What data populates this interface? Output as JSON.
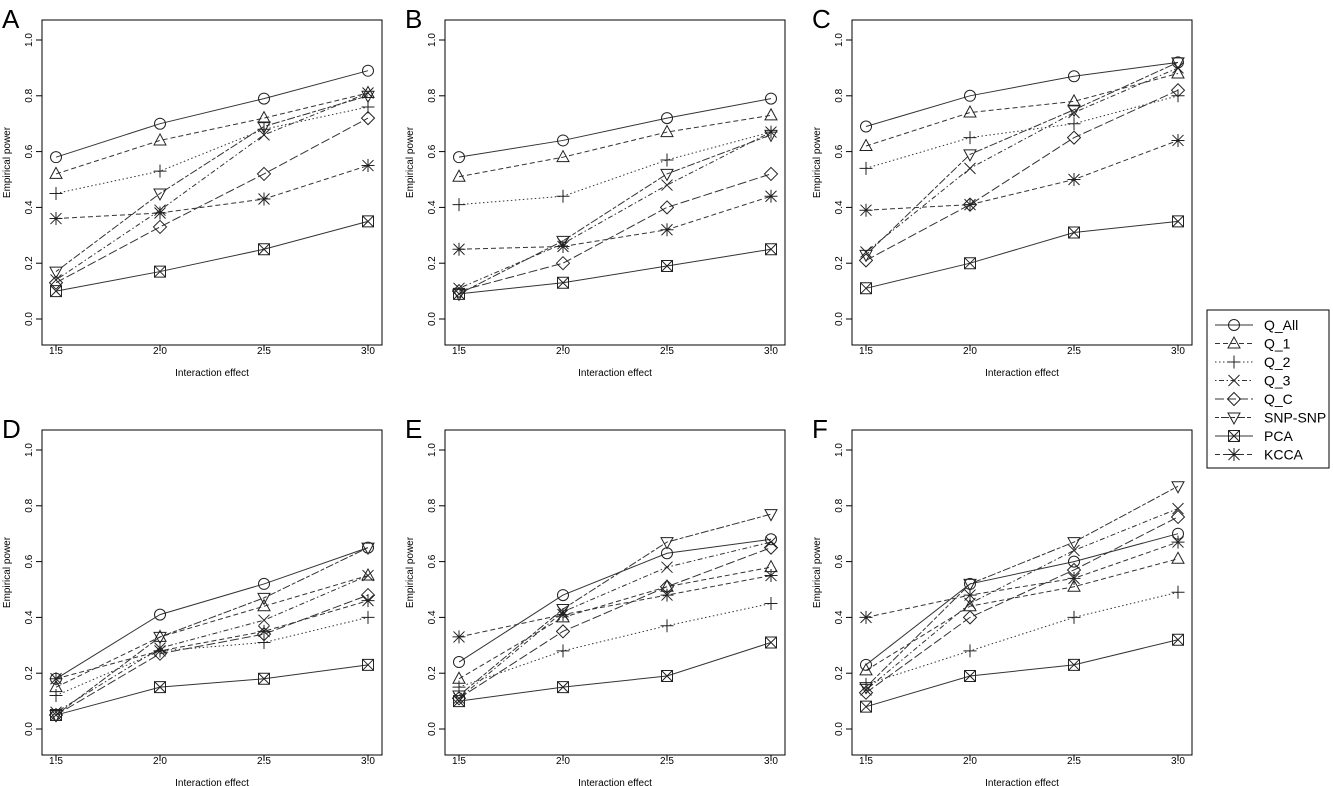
{
  "legend": {
    "placement": "right-middle",
    "entries": [
      {
        "name": "Q_All",
        "marker": "circle",
        "line": "solid"
      },
      {
        "name": "Q_1",
        "marker": "triangle-up",
        "line": "dashed"
      },
      {
        "name": "Q_2",
        "marker": "plus",
        "line": "dotted"
      },
      {
        "name": "Q_3",
        "marker": "x",
        "line": "dotdash"
      },
      {
        "name": "Q_C",
        "marker": "diamond",
        "line": "longdash"
      },
      {
        "name": "SNP-SNP",
        "marker": "triangle-down",
        "line": "twodash"
      },
      {
        "name": "PCA",
        "marker": "boxed-x",
        "line": "solid"
      },
      {
        "name": "KCCA",
        "marker": "asterisk",
        "line": "dashed"
      }
    ]
  },
  "chart_data": [
    {
      "panel": "A",
      "type": "line",
      "xlabel": "Interaction effect",
      "ylabel": "Empirical power",
      "x": [
        1.5,
        2.0,
        2.5,
        3.0
      ],
      "xticks": [
        "1.5",
        "2.0",
        "2.5",
        "3.0"
      ],
      "yticks": [
        "0.0",
        "0.2",
        "0.4",
        "0.6",
        "0.8",
        "1.0"
      ],
      "ylim": [
        0,
        1
      ],
      "series": [
        {
          "name": "Q_All",
          "values": [
            0.58,
            0.7,
            0.79,
            0.89
          ]
        },
        {
          "name": "Q_1",
          "values": [
            0.52,
            0.64,
            0.72,
            0.81
          ]
        },
        {
          "name": "Q_2",
          "values": [
            0.45,
            0.53,
            0.68,
            0.76
          ]
        },
        {
          "name": "Q_3",
          "values": [
            0.14,
            0.39,
            0.66,
            0.81
          ]
        },
        {
          "name": "Q_C",
          "values": [
            0.13,
            0.33,
            0.52,
            0.72
          ]
        },
        {
          "name": "SNP-SNP",
          "values": [
            0.17,
            0.45,
            0.69,
            0.8
          ]
        },
        {
          "name": "PCA",
          "values": [
            0.1,
            0.17,
            0.25,
            0.35
          ]
        },
        {
          "name": "KCCA",
          "values": [
            0.36,
            0.38,
            0.43,
            0.55
          ]
        }
      ]
    },
    {
      "panel": "B",
      "type": "line",
      "xlabel": "Interaction effect",
      "ylabel": "Empirical power",
      "x": [
        1.5,
        2.0,
        2.5,
        3.0
      ],
      "xticks": [
        "1.5",
        "2.0",
        "2.5",
        "3.0"
      ],
      "yticks": [
        "0.0",
        "0.2",
        "0.4",
        "0.6",
        "0.8",
        "1.0"
      ],
      "ylim": [
        0,
        1
      ],
      "series": [
        {
          "name": "Q_All",
          "values": [
            0.58,
            0.64,
            0.72,
            0.79
          ]
        },
        {
          "name": "Q_1",
          "values": [
            0.51,
            0.58,
            0.67,
            0.73
          ]
        },
        {
          "name": "Q_2",
          "values": [
            0.41,
            0.44,
            0.57,
            0.67
          ]
        },
        {
          "name": "Q_3",
          "values": [
            0.11,
            0.27,
            0.48,
            0.67
          ]
        },
        {
          "name": "Q_C",
          "values": [
            0.1,
            0.2,
            0.4,
            0.52
          ]
        },
        {
          "name": "SNP-SNP",
          "values": [
            0.09,
            0.28,
            0.52,
            0.66
          ]
        },
        {
          "name": "PCA",
          "values": [
            0.09,
            0.13,
            0.19,
            0.25
          ]
        },
        {
          "name": "KCCA",
          "values": [
            0.25,
            0.26,
            0.32,
            0.44
          ]
        }
      ]
    },
    {
      "panel": "C",
      "type": "line",
      "xlabel": "Interaction effect",
      "ylabel": "Empirical power",
      "x": [
        1.5,
        2.0,
        2.5,
        3.0
      ],
      "xticks": [
        "1.5",
        "2.0",
        "2.5",
        "3.0"
      ],
      "yticks": [
        "0.0",
        "0.2",
        "0.4",
        "0.6",
        "0.8",
        "1.0"
      ],
      "ylim": [
        0,
        1
      ],
      "series": [
        {
          "name": "Q_All",
          "values": [
            0.69,
            0.8,
            0.87,
            0.92
          ]
        },
        {
          "name": "Q_1",
          "values": [
            0.62,
            0.74,
            0.78,
            0.88
          ]
        },
        {
          "name": "Q_2",
          "values": [
            0.54,
            0.65,
            0.7,
            0.8
          ]
        },
        {
          "name": "Q_3",
          "values": [
            0.24,
            0.54,
            0.74,
            0.9
          ]
        },
        {
          "name": "Q_C",
          "values": [
            0.21,
            0.41,
            0.65,
            0.82
          ]
        },
        {
          "name": "SNP-SNP",
          "values": [
            0.23,
            0.59,
            0.75,
            0.92
          ]
        },
        {
          "name": "PCA",
          "values": [
            0.11,
            0.2,
            0.31,
            0.35
          ]
        },
        {
          "name": "KCCA",
          "values": [
            0.39,
            0.41,
            0.5,
            0.64
          ]
        }
      ]
    },
    {
      "panel": "D",
      "type": "line",
      "xlabel": "Interaction effect",
      "ylabel": "Empirical power",
      "x": [
        1.5,
        2.0,
        2.5,
        3.0
      ],
      "xticks": [
        "1.5",
        "2.0",
        "2.5",
        "3.0"
      ],
      "yticks": [
        "0.0",
        "0.2",
        "0.4",
        "0.6",
        "0.8",
        "1.0"
      ],
      "ylim": [
        0,
        1
      ],
      "series": [
        {
          "name": "Q_All",
          "values": [
            0.18,
            0.41,
            0.52,
            0.65
          ]
        },
        {
          "name": "Q_1",
          "values": [
            0.15,
            0.33,
            0.44,
            0.55
          ]
        },
        {
          "name": "Q_2",
          "values": [
            0.12,
            0.28,
            0.31,
            0.4
          ]
        },
        {
          "name": "Q_3",
          "values": [
            0.06,
            0.29,
            0.39,
            0.55
          ]
        },
        {
          "name": "Q_C",
          "values": [
            0.05,
            0.27,
            0.34,
            0.48
          ]
        },
        {
          "name": "SNP-SNP",
          "values": [
            0.05,
            0.33,
            0.47,
            0.65
          ]
        },
        {
          "name": "PCA",
          "values": [
            0.05,
            0.15,
            0.18,
            0.23
          ]
        },
        {
          "name": "KCCA",
          "values": [
            0.18,
            0.28,
            0.35,
            0.46
          ]
        }
      ]
    },
    {
      "panel": "E",
      "type": "line",
      "xlabel": "Interaction effect",
      "ylabel": "Empirical power",
      "x": [
        1.5,
        2.0,
        2.5,
        3.0
      ],
      "xticks": [
        "1.5",
        "2.0",
        "2.5",
        "3.0"
      ],
      "yticks": [
        "0.0",
        "0.2",
        "0.4",
        "0.6",
        "0.8",
        "1.0"
      ],
      "ylim": [
        0,
        1
      ],
      "series": [
        {
          "name": "Q_All",
          "values": [
            0.24,
            0.48,
            0.63,
            0.68
          ]
        },
        {
          "name": "Q_1",
          "values": [
            0.18,
            0.4,
            0.51,
            0.58
          ]
        },
        {
          "name": "Q_2",
          "values": [
            0.15,
            0.28,
            0.37,
            0.45
          ]
        },
        {
          "name": "Q_3",
          "values": [
            0.11,
            0.42,
            0.58,
            0.67
          ]
        },
        {
          "name": "Q_C",
          "values": [
            0.11,
            0.35,
            0.51,
            0.65
          ]
        },
        {
          "name": "SNP-SNP",
          "values": [
            0.12,
            0.43,
            0.67,
            0.77
          ]
        },
        {
          "name": "PCA",
          "values": [
            0.1,
            0.15,
            0.19,
            0.31
          ]
        },
        {
          "name": "KCCA",
          "values": [
            0.33,
            0.41,
            0.48,
            0.55
          ]
        }
      ]
    },
    {
      "panel": "F",
      "type": "line",
      "xlabel": "Interaction effect",
      "ylabel": "Empirical power",
      "x": [
        1.5,
        2.0,
        2.5,
        3.0
      ],
      "xticks": [
        "1.5",
        "2.0",
        "2.5",
        "3.0"
      ],
      "yticks": [
        "0.0",
        "0.2",
        "0.4",
        "0.6",
        "0.8",
        "1.0"
      ],
      "ylim": [
        0,
        1
      ],
      "series": [
        {
          "name": "Q_All",
          "values": [
            0.23,
            0.52,
            0.6,
            0.7
          ]
        },
        {
          "name": "Q_1",
          "values": [
            0.21,
            0.44,
            0.51,
            0.61
          ]
        },
        {
          "name": "Q_2",
          "values": [
            0.16,
            0.28,
            0.4,
            0.49
          ]
        },
        {
          "name": "Q_3",
          "values": [
            0.14,
            0.45,
            0.64,
            0.79
          ]
        },
        {
          "name": "Q_C",
          "values": [
            0.13,
            0.4,
            0.57,
            0.76
          ]
        },
        {
          "name": "SNP-SNP",
          "values": [
            0.15,
            0.52,
            0.67,
            0.87
          ]
        },
        {
          "name": "PCA",
          "values": [
            0.08,
            0.19,
            0.23,
            0.32
          ]
        },
        {
          "name": "KCCA",
          "values": [
            0.4,
            0.48,
            0.54,
            0.67
          ]
        }
      ]
    }
  ]
}
